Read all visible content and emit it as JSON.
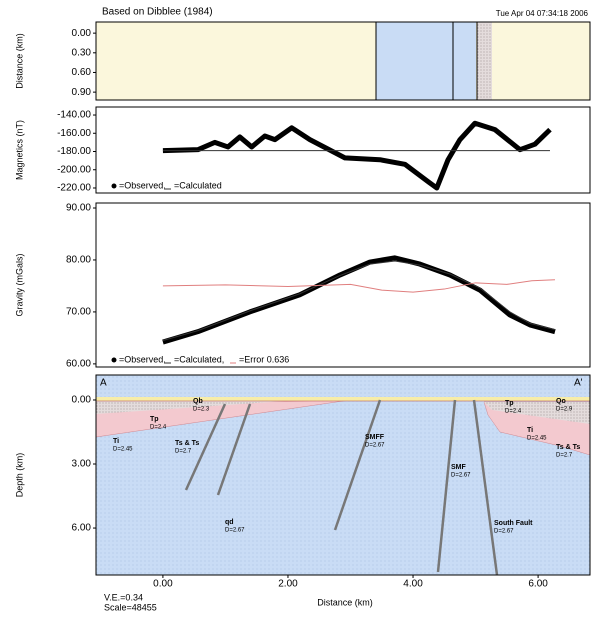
{
  "chart_data": [
    {
      "type": "section-strip",
      "title": "Based on Dibblee (1984)",
      "timestamp": "Tue Apr 04 07:34:18 2006",
      "ylabel": "Distance (km)",
      "yreversed": true,
      "ylim": [
        -0.17,
        1.02
      ],
      "yticks": [
        {
          "value": 0,
          "label": "0.00"
        },
        {
          "value": 0.3,
          "label": "0.30"
        },
        {
          "value": 0.6,
          "label": "0.60"
        },
        {
          "value": 0.9,
          "label": "0.90"
        }
      ]
    },
    {
      "type": "line",
      "ylabel": "Magnetics (nT)",
      "ylim": [
        -225.5,
        -131.2
      ],
      "yticks": [
        {
          "value": -140,
          "label": "-140.00"
        },
        {
          "value": -160,
          "label": "-160.00"
        },
        {
          "value": -180,
          "label": "-180.00"
        },
        {
          "value": -200,
          "label": "-200.00"
        },
        {
          "value": -220,
          "label": "-220.00"
        }
      ],
      "series": [
        {
          "name": "=Observed,",
          "color": "#000000",
          "x": [
            0,
            0.56,
            0.83,
            1.04,
            1.23,
            1.42,
            1.63,
            1.79,
            2.06,
            2.35,
            2.91,
            3.47,
            3.87,
            4.24,
            4.38,
            4.56,
            4.75,
            4.99,
            5.31,
            5.71,
            5.95,
            6.19
          ],
          "values": [
            -179,
            -178,
            -170,
            -175,
            -164,
            -175,
            -163,
            -167,
            -154,
            -167,
            -187,
            -189,
            -194,
            -213,
            -220,
            -189,
            -167,
            -149,
            -156,
            -178,
            -172,
            -156
          ]
        },
        {
          "name": "=Calculated",
          "color": "#333333",
          "x": [
            0,
            6.19
          ],
          "values": [
            -179,
            -179
          ]
        }
      ]
    },
    {
      "type": "line",
      "ylabel": "Gravity (mGals)",
      "ylim": [
        59.4,
        90.96
      ],
      "yticks": [
        {
          "value": 90,
          "label": "90.00"
        },
        {
          "value": 80,
          "label": "80.00"
        },
        {
          "value": 70,
          "label": "70.00"
        },
        {
          "value": 60,
          "label": "60.00"
        }
      ],
      "series": [
        {
          "name": "=Observed,",
          "color": "#000000",
          "x": [
            0,
            0.56,
            1.39,
            2.19,
            2.83,
            3.31,
            3.71,
            4.11,
            4.59,
            5.07,
            5.55,
            5.87,
            6.27
          ],
          "values": [
            64.2,
            66.2,
            70,
            73.3,
            77.1,
            79.6,
            80.4,
            79.2,
            77.1,
            74.2,
            69.4,
            67.5,
            66.2
          ]
        },
        {
          "name": "=Calculated,",
          "color": "#333333",
          "x": [
            0,
            0.56,
            1.39,
            2.19,
            2.83,
            3.31,
            3.71,
            4.11,
            4.59,
            5.07,
            5.55,
            5.87,
            6.27
          ],
          "values": [
            64.5,
            66.4,
            70.2,
            73.5,
            77,
            79.2,
            79.8,
            79,
            77.3,
            74.6,
            70,
            67.8,
            66.6
          ]
        },
        {
          "name": "=Error 0.636",
          "color": "#e07f7f",
          "x": [
            0,
            1,
            2,
            3,
            3.5,
            4,
            4.5,
            5,
            5.5,
            5.9,
            6.27
          ],
          "values": [
            75,
            75.2,
            74.9,
            75.3,
            74.2,
            73.8,
            74.4,
            75.6,
            75.3,
            76,
            76.2
          ]
        }
      ]
    },
    {
      "type": "cross-section",
      "ylabel": "Depth (km)",
      "xlabel": "Distance (km)",
      "yreversed": true,
      "xlim": [
        -1.07,
        6.83
      ],
      "ylim": [
        -1.17,
        8.2
      ],
      "xticks": [
        {
          "value": 0,
          "label": "0.00"
        },
        {
          "value": 2,
          "label": "2.00"
        },
        {
          "value": 4,
          "label": "4.00"
        },
        {
          "value": 6,
          "label": "6.00"
        }
      ],
      "yticks": [
        {
          "value": 0,
          "label": "0.00"
        },
        {
          "value": 3,
          "label": "3.00"
        },
        {
          "value": 6,
          "label": "6.00"
        }
      ],
      "ends": [
        "A",
        "A'"
      ],
      "notes": [
        "V.E.=0.34",
        "Scale=48455"
      ],
      "units": [
        {
          "name": "Qb",
          "density": "D=2.3"
        },
        {
          "name": "Tp",
          "density": "D=2.4"
        },
        {
          "name": "Ti",
          "density": "D=2.45"
        },
        {
          "name": "Ts & Ts",
          "density": "D=2.7"
        },
        {
          "name": "SMFF",
          "density": "D=2.67"
        },
        {
          "name": "SMF",
          "density": "D=2.67"
        },
        {
          "name": "qd",
          "density": "D=2.67"
        },
        {
          "name": "South Fault",
          "density": "D=2.67"
        },
        {
          "name": "Tp",
          "density": "D=2.4"
        },
        {
          "name": "Qo",
          "density": "D=2.9"
        },
        {
          "name": "Ti",
          "density": "D=2.45"
        },
        {
          "name": "Ts & Ts",
          "density": "D=2.7"
        }
      ]
    }
  ]
}
